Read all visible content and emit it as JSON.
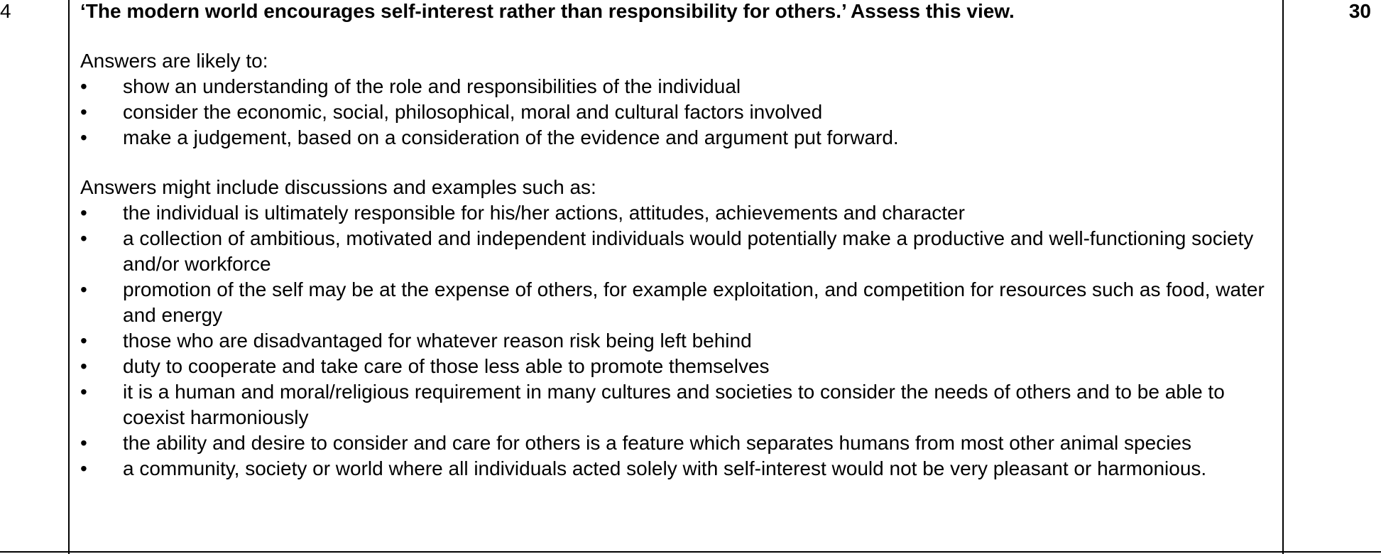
{
  "question_number": "4",
  "marks": "30",
  "question": "‘The modern world encourages self-interest rather than responsibility for others.’ Assess this view.",
  "section1": {
    "intro": "Answers are likely to:",
    "bullets": [
      "show an understanding of the role and responsibilities of the individual",
      "consider the economic, social, philosophical, moral and cultural factors involved",
      "make a judgement, based on a consideration of the evidence and argument put forward."
    ]
  },
  "section2": {
    "intro": "Answers might include discussions and examples such as:",
    "bullets": [
      "the individual is ultimately responsible for his/her actions, attitudes, achievements and character",
      "a collection of ambitious, motivated and independent individuals would potentially make a productive and well-functioning society and/or workforce",
      "promotion of the self may be at the expense of others, for example exploitation, and competition for resources such as food, water and energy",
      "those who are disadvantaged for whatever reason risk being left behind",
      "duty to cooperate and take care of those less able to promote themselves",
      "it is a human and moral/religious requirement in many cultures and societies to consider the needs of others and to be able to coexist harmoniously",
      "the ability and desire to consider and care for others is a feature which separates humans from most other animal species",
      "a community, society or world where all individuals acted solely with self-interest would not be very pleasant or harmonious."
    ]
  },
  "bullet_glyph": "•"
}
